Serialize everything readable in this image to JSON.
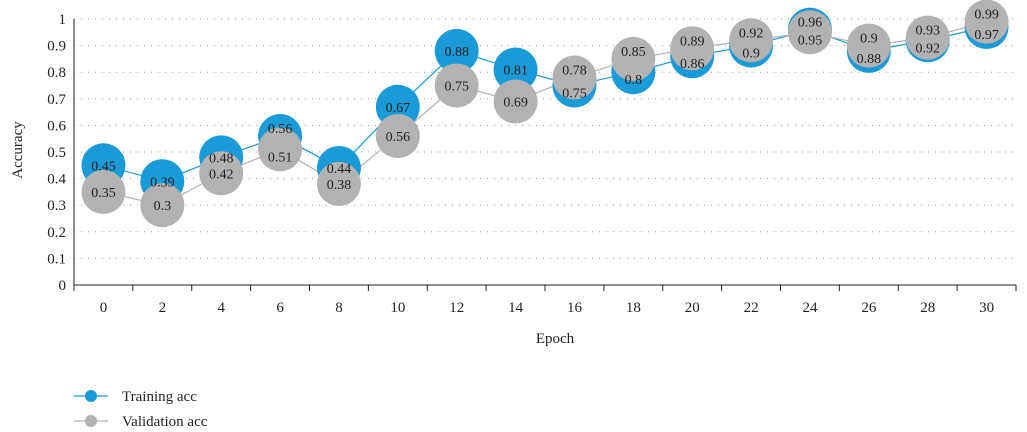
{
  "colors": {
    "training": "#1a9ad6",
    "validation": "#b2b2b3",
    "grid": "#9a9a9a",
    "axis": "#231f20"
  },
  "chart_data": {
    "type": "line",
    "title": "",
    "xlabel": "Epoch",
    "ylabel": "Accuracy",
    "x": [
      0,
      2,
      4,
      6,
      8,
      10,
      12,
      14,
      16,
      18,
      20,
      22,
      24,
      26,
      28,
      30
    ],
    "x_ticks": [
      "0",
      "2",
      "4",
      "6",
      "8",
      "10",
      "12",
      "14",
      "16",
      "18",
      "20",
      "22",
      "24",
      "26",
      "28",
      "30"
    ],
    "y_ticks": [
      "0",
      "0.1",
      "0.2",
      "0.3",
      "0.4",
      "0.5",
      "0.6",
      "0.7",
      "0.8",
      "0.9",
      "1"
    ],
    "ylim": [
      0,
      1
    ],
    "grid": "horizontal-dotted",
    "legend_position": "bottom-left",
    "series": [
      {
        "name": "Training acc",
        "color": "#1a9ad6",
        "values": [
          0.45,
          0.39,
          0.48,
          0.56,
          0.44,
          0.67,
          0.88,
          0.81,
          0.75,
          0.8,
          0.86,
          0.9,
          0.96,
          0.88,
          0.92,
          0.97
        ],
        "labels": [
          "0.45",
          "0.39",
          "0.48",
          "0.56",
          "0.44",
          "0.67",
          "0.88",
          "0.81",
          "0.75",
          "0.8",
          "0.86",
          "0.9",
          "0.96",
          "0.88",
          "0.92",
          "0.97"
        ]
      },
      {
        "name": "Validation acc",
        "color": "#b2b2b3",
        "values": [
          0.35,
          0.3,
          0.42,
          0.51,
          0.38,
          0.56,
          0.75,
          0.69,
          0.78,
          0.85,
          0.89,
          0.92,
          0.95,
          0.9,
          0.93,
          0.99
        ],
        "labels": [
          "0.35",
          "0.3",
          "0.42",
          "0.51",
          "0.38",
          "0.56",
          "0.75",
          "0.69",
          "0.78",
          "0.85",
          "0.89",
          "0.92",
          "0.95",
          "0.9",
          "0.93",
          "0.99"
        ]
      }
    ]
  }
}
